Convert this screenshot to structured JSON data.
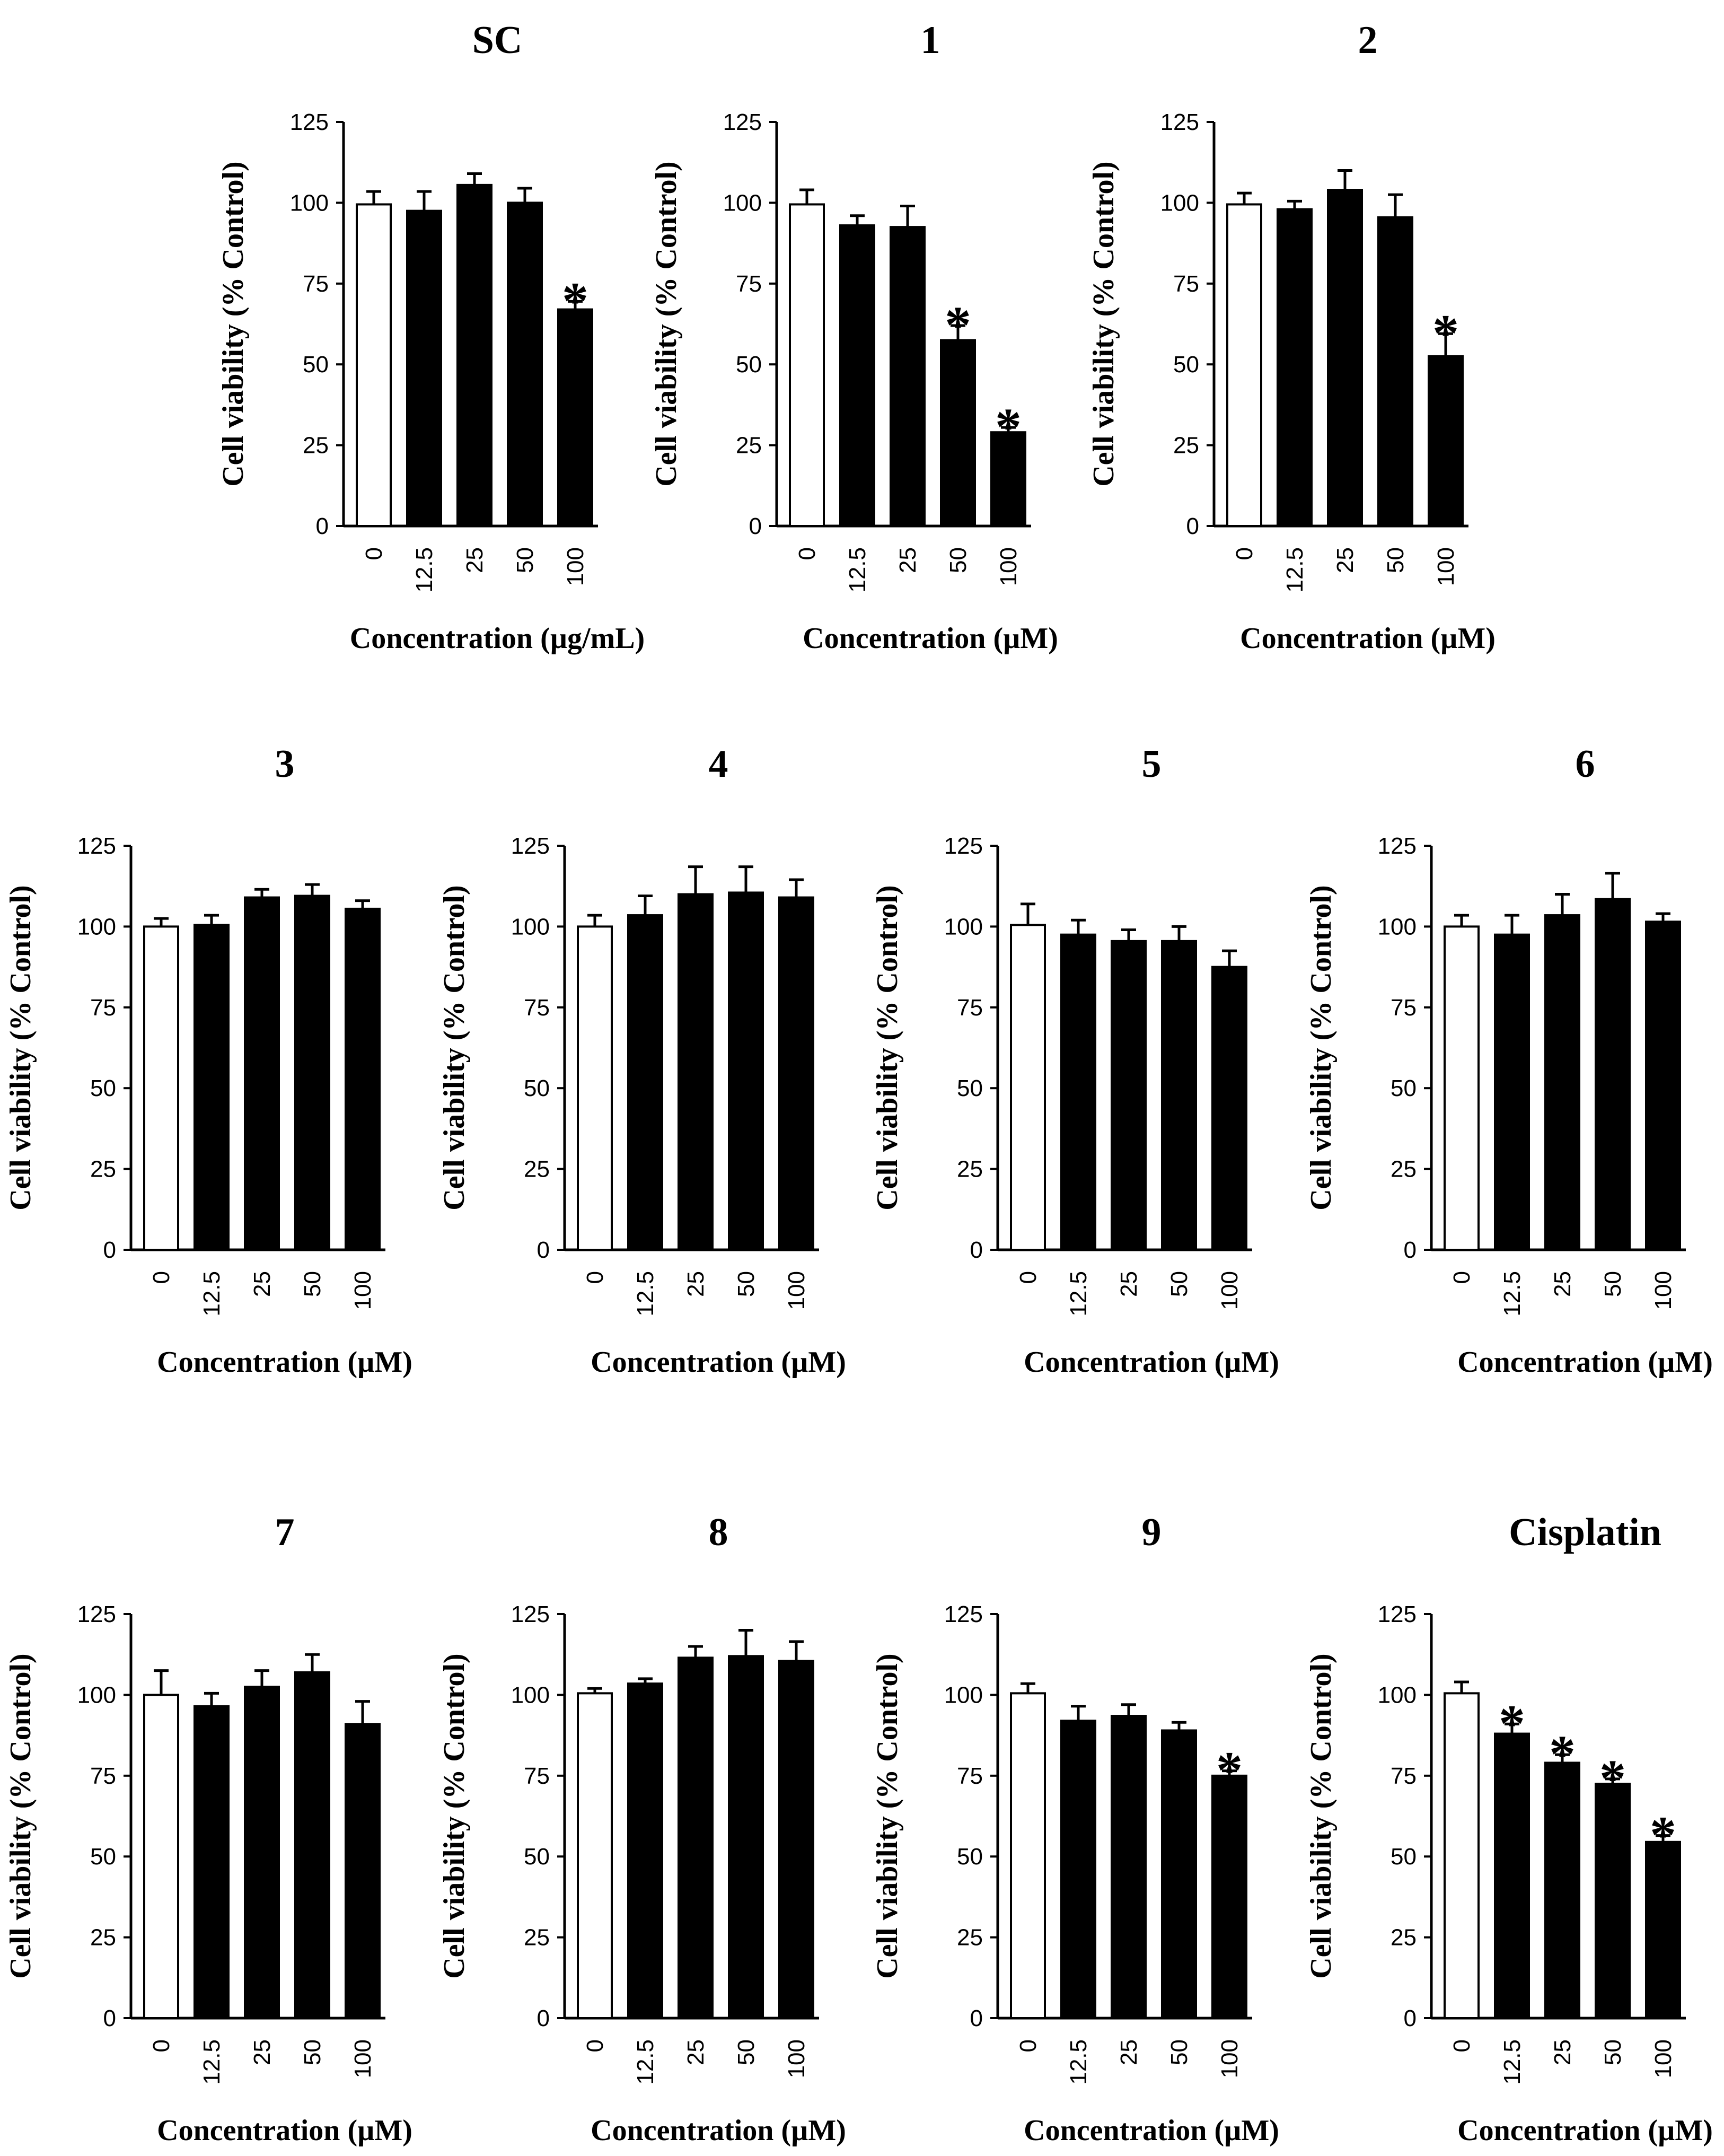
{
  "chart_data": [
    {
      "type": "bar",
      "title": "SC",
      "ylabel": "Cell viability (% Control)",
      "xlabel": "Concentration (µg/mL)",
      "yticks": [
        "0",
        "25",
        "50",
        "75",
        "100",
        "125"
      ],
      "ylim": [
        0,
        125
      ],
      "categories": [
        "0",
        "12.5",
        "25",
        "50",
        "100"
      ],
      "values": [
        99.5,
        97.5,
        105.5,
        100,
        67
      ],
      "errors": [
        4,
        6,
        3.5,
        4.5,
        2.5
      ],
      "significant": [
        false,
        false,
        false,
        false,
        true
      ],
      "marker": "*"
    },
    {
      "type": "bar",
      "title": "1",
      "ylabel": "Cell viability (% Control)",
      "xlabel": "Concentration (µM)",
      "yticks": [
        "0",
        "25",
        "50",
        "75",
        "100",
        "125"
      ],
      "ylim": [
        0,
        125
      ],
      "categories": [
        "0",
        "12.5",
        "25",
        "50",
        "100"
      ],
      "values": [
        99.5,
        93,
        92.5,
        57.5,
        29
      ],
      "errors": [
        4.5,
        3,
        6.5,
        4.5,
        1.5
      ],
      "significant": [
        false,
        false,
        false,
        true,
        true
      ],
      "marker": "*"
    },
    {
      "type": "bar",
      "title": "2",
      "ylabel": "Cell viability (% Control)",
      "xlabel": "Concentration (µM)",
      "yticks": [
        "0",
        "25",
        "50",
        "75",
        "100",
        "125"
      ],
      "ylim": [
        0,
        125
      ],
      "categories": [
        "0",
        "12.5",
        "25",
        "50",
        "100"
      ],
      "values": [
        99.5,
        98,
        104,
        95.5,
        52.5
      ],
      "errors": [
        3.5,
        2.5,
        6,
        7,
        7
      ],
      "significant": [
        false,
        false,
        false,
        false,
        true
      ],
      "marker": "*"
    },
    {
      "type": "bar",
      "title": "3",
      "ylabel": "Cell viability (% Control)",
      "xlabel": "Concentration (µM)",
      "yticks": [
        "0",
        "25",
        "50",
        "75",
        "100",
        "125"
      ],
      "ylim": [
        0,
        125
      ],
      "categories": [
        "0",
        "12.5",
        "25",
        "50",
        "100"
      ],
      "values": [
        100,
        100.5,
        109,
        109.5,
        105.5
      ],
      "errors": [
        2.5,
        3,
        2.5,
        3.5,
        2.5
      ],
      "significant": [
        false,
        false,
        false,
        false,
        false
      ],
      "marker": "*"
    },
    {
      "type": "bar",
      "title": "4",
      "ylabel": "Cell viability (% Control)",
      "xlabel": "Concentration (µM)",
      "yticks": [
        "0",
        "25",
        "50",
        "75",
        "100",
        "125"
      ],
      "ylim": [
        0,
        125
      ],
      "categories": [
        "0",
        "12.5",
        "25",
        "50",
        "100"
      ],
      "values": [
        100,
        103.5,
        110,
        110.5,
        109
      ],
      "errors": [
        3.5,
        6,
        8.5,
        8,
        5.5
      ],
      "significant": [
        false,
        false,
        false,
        false,
        false
      ],
      "marker": "*"
    },
    {
      "type": "bar",
      "title": "5",
      "ylabel": "Cell viability (% Control)",
      "xlabel": "Concentration (µM)",
      "yticks": [
        "0",
        "25",
        "50",
        "75",
        "100",
        "125"
      ],
      "ylim": [
        0,
        125
      ],
      "categories": [
        "0",
        "12.5",
        "25",
        "50",
        "100"
      ],
      "values": [
        100.5,
        97.5,
        95.5,
        95.5,
        87.5
      ],
      "errors": [
        6.5,
        4.5,
        3.5,
        4.5,
        5
      ],
      "significant": [
        false,
        false,
        false,
        false,
        false
      ],
      "marker": "*"
    },
    {
      "type": "bar",
      "title": "6",
      "ylabel": "Cell viability (% Control)",
      "xlabel": "Concentration (µM)",
      "yticks": [
        "0",
        "25",
        "50",
        "75",
        "100",
        "125"
      ],
      "ylim": [
        0,
        125
      ],
      "categories": [
        "0",
        "12.5",
        "25",
        "50",
        "100"
      ],
      "values": [
        100,
        97.5,
        103.5,
        108.5,
        101.5
      ],
      "errors": [
        3.5,
        6,
        6.5,
        8,
        2.5
      ],
      "significant": [
        false,
        false,
        false,
        false,
        false
      ],
      "marker": "*"
    },
    {
      "type": "bar",
      "title": "7",
      "ylabel": "Cell viability (% Control)",
      "xlabel": "Concentration (µM)",
      "yticks": [
        "0",
        "25",
        "50",
        "75",
        "100",
        "125"
      ],
      "ylim": [
        0,
        125
      ],
      "categories": [
        "0",
        "12.5",
        "25",
        "50",
        "100"
      ],
      "values": [
        100,
        96.5,
        102.5,
        107,
        91
      ],
      "errors": [
        7.5,
        4,
        5,
        5.5,
        7
      ],
      "significant": [
        false,
        false,
        false,
        false,
        false
      ],
      "marker": "*"
    },
    {
      "type": "bar",
      "title": "8",
      "ylabel": "Cell viability (% Control)",
      "xlabel": "Concentration (µM)",
      "yticks": [
        "0",
        "25",
        "50",
        "75",
        "100",
        "125"
      ],
      "ylim": [
        0,
        125
      ],
      "categories": [
        "0",
        "12.5",
        "25",
        "50",
        "100"
      ],
      "values": [
        100.5,
        103.5,
        111.5,
        112,
        110.5
      ],
      "errors": [
        1.5,
        1.5,
        3.5,
        8,
        6
      ],
      "significant": [
        false,
        false,
        false,
        false,
        false
      ],
      "marker": "*"
    },
    {
      "type": "bar",
      "title": "9",
      "ylabel": "Cell viability (% Control)",
      "xlabel": "Concentration (µM)",
      "yticks": [
        "0",
        "25",
        "50",
        "75",
        "100",
        "125"
      ],
      "ylim": [
        0,
        125
      ],
      "categories": [
        "0",
        "12.5",
        "25",
        "50",
        "100"
      ],
      "values": [
        100.5,
        92,
        93.5,
        89,
        75
      ],
      "errors": [
        3,
        4.5,
        3.5,
        2.5,
        1.5
      ],
      "significant": [
        false,
        false,
        false,
        false,
        true
      ],
      "marker": "*"
    },
    {
      "type": "bar",
      "title": "Cisplatin",
      "ylabel": "Cell viability (% Control)",
      "xlabel": "Concentration (µM)",
      "yticks": [
        "0",
        "25",
        "50",
        "75",
        "100",
        "125"
      ],
      "ylim": [
        0,
        125
      ],
      "categories": [
        "0",
        "12.5",
        "25",
        "50",
        "100"
      ],
      "values": [
        100.5,
        88,
        79,
        72.5,
        54.5
      ],
      "errors": [
        3.5,
        3,
        2.5,
        1.5,
        2
      ],
      "significant": [
        false,
        true,
        true,
        true,
        true
      ],
      "marker": "*"
    }
  ]
}
